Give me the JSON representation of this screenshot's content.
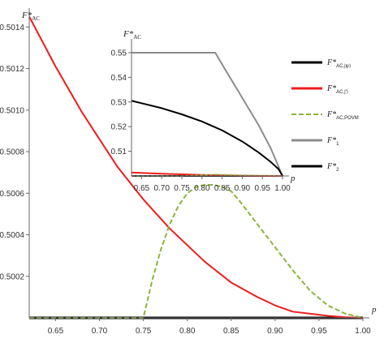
{
  "chart_data": [
    {
      "type": "line",
      "role": "main",
      "ylabel": {
        "base": "F*",
        "sub": "AC"
      },
      "xlabel": "p",
      "xlim": [
        0.62,
        1.0
      ],
      "ylim": [
        0.5,
        0.50153
      ],
      "x_ticks": [
        0.65,
        0.7,
        0.75,
        0.8,
        0.85,
        0.9,
        0.95,
        1.0
      ],
      "x_tick_labels": [
        "0.65",
        "0.70",
        "0.75",
        "0.80",
        "0.85",
        "0.90",
        "0.95",
        "1.00"
      ],
      "y_ticks": [
        0.5002,
        0.5004,
        0.5006,
        0.5008,
        0.501,
        0.5012,
        0.5014
      ],
      "y_tick_labels": [
        "0.5002",
        "0.5004",
        "0.5006",
        "0.5008",
        "0.5010",
        "0.5012",
        "0.5014"
      ],
      "series": [
        {
          "key": "ac_chi",
          "color": "#000000",
          "dash": "",
          "width": 3,
          "x": [
            0.62,
            1.0
          ],
          "y": [
            0.5,
            0.5
          ]
        },
        {
          "key": "ac_red",
          "color": "#ee1c1c",
          "dash": "",
          "width": 2,
          "x": [
            0.62,
            0.65,
            0.68,
            0.7,
            0.72,
            0.75,
            0.78,
            0.8,
            0.82,
            0.85,
            0.88,
            0.9,
            0.92,
            0.94,
            0.96,
            0.98,
            1.0
          ],
          "y": [
            0.50145,
            0.50121,
            0.50099,
            0.50086,
            0.50073,
            0.50057,
            0.50043,
            0.50035,
            0.50027,
            0.50017,
            0.5001,
            0.50006,
            0.50003,
            0.50002,
            0.50001,
            0.500003,
            0.5
          ]
        },
        {
          "key": "ac_povm",
          "color": "#8db33a",
          "dash": "6,3",
          "width": 2,
          "x": [
            0.62,
            0.75,
            0.76,
            0.77,
            0.78,
            0.79,
            0.8,
            0.81,
            0.82,
            0.83,
            0.84,
            0.85,
            0.86,
            0.88,
            0.9,
            0.92,
            0.94,
            0.96,
            0.98,
            1.0
          ],
          "y": [
            0.5,
            0.5,
            0.50018,
            0.50033,
            0.50045,
            0.50054,
            0.5006,
            0.50063,
            0.50064,
            0.50064,
            0.50063,
            0.50061,
            0.50056,
            0.50045,
            0.50034,
            0.50023,
            0.50013,
            0.50006,
            0.50002,
            0.5
          ]
        }
      ]
    },
    {
      "type": "line",
      "role": "inset",
      "ylabel": {
        "base": "F*",
        "sub": "AC"
      },
      "xlabel": "p",
      "xlim": [
        0.625,
        1.0
      ],
      "ylim": [
        0.5,
        0.55
      ],
      "x_ticks": [
        0.65,
        0.7,
        0.75,
        0.8,
        0.85,
        0.9,
        0.95,
        1.0
      ],
      "x_tick_labels": [
        "0.65",
        "0.70",
        "0.75",
        "0.80",
        "0.85",
        "0.90",
        "0.95",
        "1.00"
      ],
      "y_ticks": [
        0.51,
        0.52,
        0.53,
        0.54,
        0.55
      ],
      "y_tick_labels": [
        "0.51",
        "0.52",
        "0.53",
        "0.54",
        "0.55"
      ],
      "series": [
        {
          "key": "f1",
          "color": "#8c8c8c",
          "dash": "",
          "width": 2,
          "x": [
            0.625,
            0.833,
            0.86,
            0.9,
            0.94,
            0.97,
            1.0
          ],
          "y": [
            0.55,
            0.55,
            0.5425,
            0.5317,
            0.5208,
            0.5115,
            0.5
          ]
        },
        {
          "key": "ac_chi",
          "color": "#000000",
          "dash": "",
          "width": 2,
          "x": [
            0.625,
            0.65,
            0.7,
            0.75,
            0.8,
            0.85,
            0.9,
            0.94,
            0.97,
            0.99,
            1.0
          ],
          "y": [
            0.5305,
            0.5295,
            0.5275,
            0.525,
            0.5221,
            0.5185,
            0.514,
            0.5096,
            0.5058,
            0.5028,
            0.5
          ]
        },
        {
          "key": "f2",
          "color": "#000000",
          "dash": "",
          "width": 2,
          "x": [
            0.625,
            1.0
          ],
          "y": [
            0.5,
            0.5
          ]
        },
        {
          "key": "ac_red",
          "color": "#ee1c1c",
          "dash": "",
          "width": 2,
          "x": [
            0.625,
            0.7,
            0.8,
            0.9,
            1.0
          ],
          "y": [
            0.5014,
            0.5009,
            0.5004,
            0.5001,
            0.5
          ]
        },
        {
          "key": "ac_povm",
          "color": "#8db33a",
          "dash": "4,2",
          "width": 1.5,
          "x": [
            0.625,
            0.75,
            0.83,
            0.9,
            1.0
          ],
          "y": [
            0.5,
            0.5,
            0.5006,
            0.5003,
            0.5
          ]
        }
      ]
    }
  ],
  "legend": {
    "placement": "right",
    "items": [
      {
        "key": "ac_chi",
        "base": "F*",
        "sub": "AC,|ψ⟩",
        "color": "#000000",
        "dash": "",
        "width": 3
      },
      {
        "key": "ac_red",
        "base": "F*",
        "sub": "AC,|′⟩",
        "color": "#ee1c1c",
        "dash": "",
        "width": 3
      },
      {
        "key": "ac_povm",
        "base": "F*",
        "sub": "AC,POVM",
        "color": "#8db33a",
        "dash": "6,3",
        "width": 2
      },
      {
        "key": "f1",
        "base": "F*",
        "sub": "1",
        "color": "#8c8c8c",
        "dash": "",
        "width": 3
      },
      {
        "key": "f2",
        "base": "F*",
        "sub": "2",
        "color": "#000000",
        "dash": "",
        "width": 3
      }
    ]
  }
}
